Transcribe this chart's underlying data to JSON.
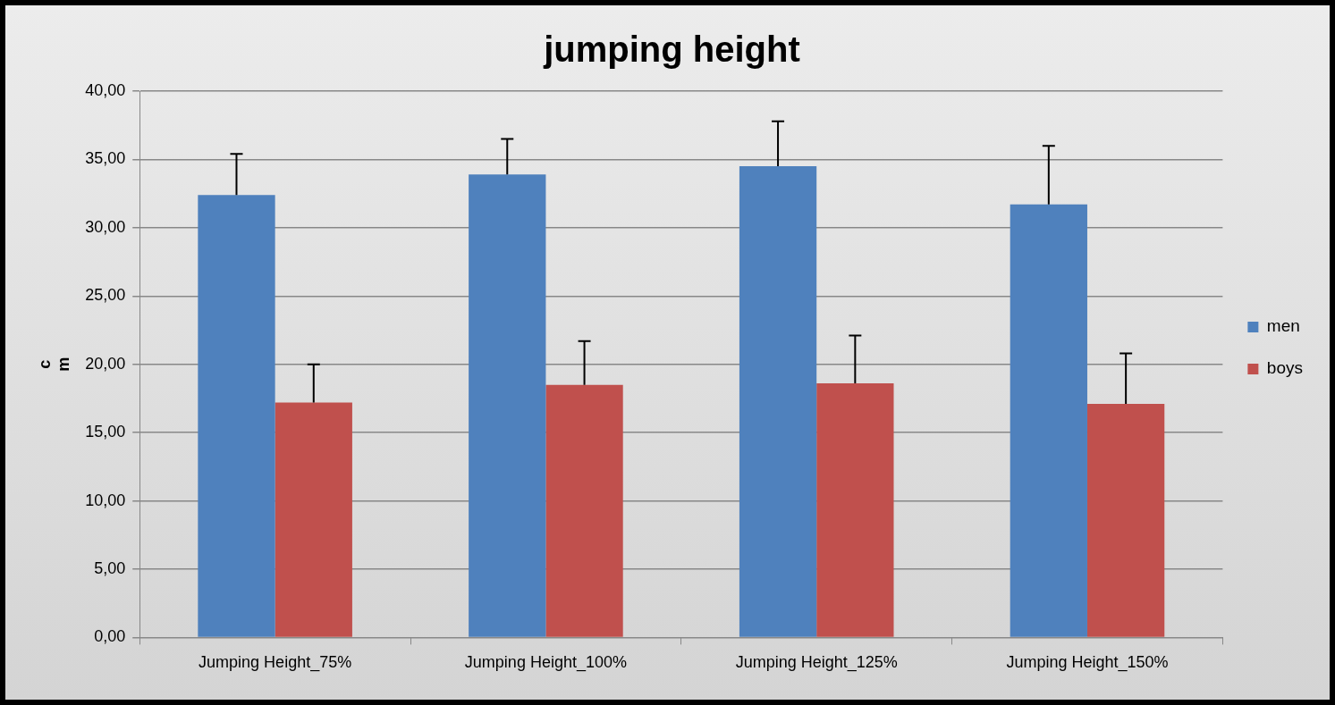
{
  "chart_data": {
    "type": "bar",
    "title": "jumping height",
    "ylabel": "cm",
    "categories": [
      "Jumping Height_75%",
      "Jumping Height_100%",
      "Jumping Height_125%",
      "Jumping Height_150%"
    ],
    "series": [
      {
        "name": "men",
        "color": "#4f81bd",
        "values": [
          32.4,
          33.9,
          34.5,
          31.7
        ],
        "errors": [
          [
            32.4,
            35.4
          ],
          [
            33.9,
            36.5
          ],
          [
            34.5,
            37.8
          ],
          [
            31.7,
            36.0
          ]
        ]
      },
      {
        "name": "boys",
        "color": "#c0504d",
        "values": [
          17.2,
          18.5,
          18.6,
          17.1
        ],
        "errors": [
          [
            17.2,
            20.0
          ],
          [
            18.5,
            21.7
          ],
          [
            18.6,
            22.1
          ],
          [
            17.1,
            20.8
          ]
        ]
      }
    ],
    "ylim": [
      0,
      40
    ],
    "yticks": [
      {
        "value": 0,
        "label": "0,00"
      },
      {
        "value": 5,
        "label": "5,00"
      },
      {
        "value": 10,
        "label": "10,00"
      },
      {
        "value": 15,
        "label": "15,00"
      },
      {
        "value": 20,
        "label": "20,00"
      },
      {
        "value": 25,
        "label": "25,00"
      },
      {
        "value": 30,
        "label": "30,00"
      },
      {
        "value": 35,
        "label": "35,00"
      },
      {
        "value": 40,
        "label": "40,00"
      }
    ],
    "grid": "y",
    "legend": "right"
  }
}
